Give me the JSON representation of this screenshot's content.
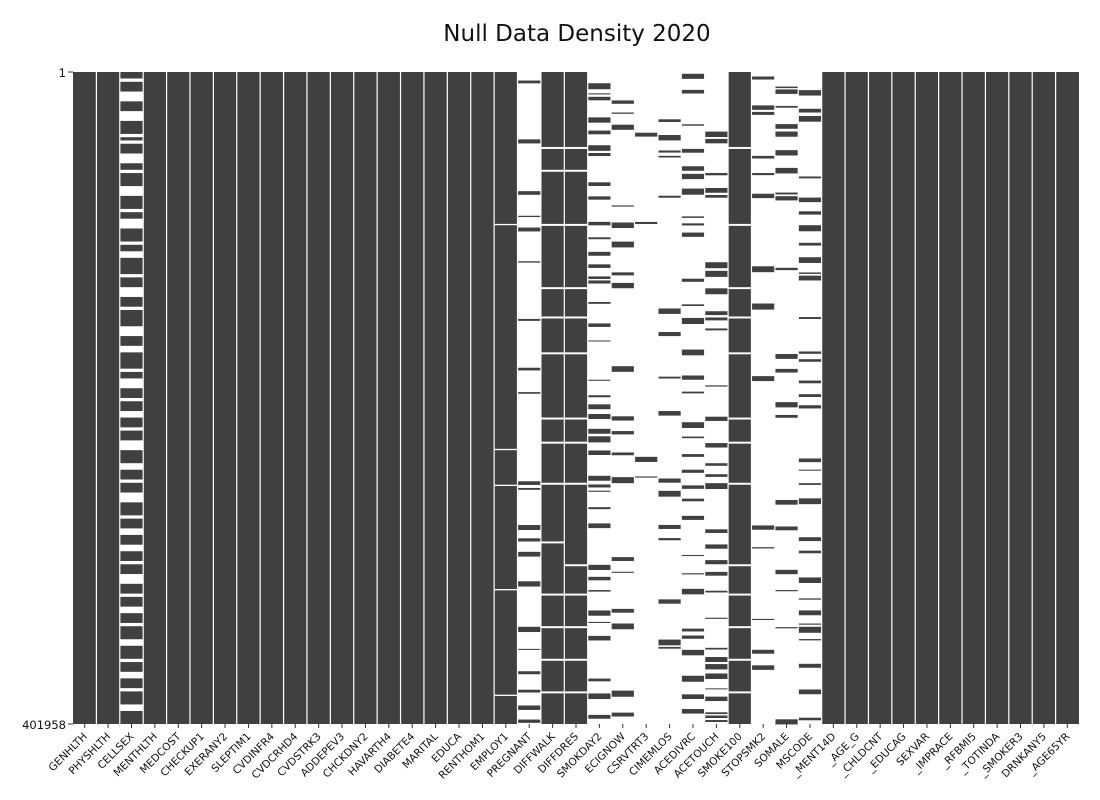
{
  "chart_data": {
    "type": "heatmap",
    "title": "Null Data Density 2020",
    "y_tick_labels": [
      "1",
      "401958"
    ],
    "y_range": [
      1,
      401958
    ],
    "colors": {
      "present": "#404040",
      "missing": "#ffffff",
      "divider": "#ffffff"
    },
    "grid": false,
    "legend": "none",
    "columns": [
      {
        "name": "GENHLTH",
        "missing_fraction": 0.0,
        "pattern": []
      },
      {
        "name": "PHYSHLTH",
        "missing_fraction": 0.0,
        "pattern": []
      },
      {
        "name": "CELLSEX",
        "missing_fraction": 0.45,
        "pattern": [
          [
            0.01,
            0.015
          ],
          [
            0.03,
            0.045
          ],
          [
            0.06,
            0.075
          ],
          [
            0.095,
            0.1
          ],
          [
            0.105,
            0.11
          ],
          [
            0.125,
            0.14
          ],
          [
            0.15,
            0.155
          ],
          [
            0.175,
            0.19
          ],
          [
            0.21,
            0.215
          ],
          [
            0.225,
            0.24
          ],
          [
            0.26,
            0.265
          ],
          [
            0.275,
            0.285
          ],
          [
            0.31,
            0.315
          ],
          [
            0.33,
            0.345
          ],
          [
            0.36,
            0.365
          ],
          [
            0.39,
            0.405
          ],
          [
            0.42,
            0.43
          ],
          [
            0.455,
            0.46
          ],
          [
            0.47,
            0.485
          ],
          [
            0.5,
            0.505
          ],
          [
            0.52,
            0.53
          ],
          [
            0.545,
            0.55
          ],
          [
            0.565,
            0.58
          ],
          [
            0.6,
            0.61
          ],
          [
            0.625,
            0.63
          ],
          [
            0.645,
            0.66
          ],
          [
            0.68,
            0.685
          ],
          [
            0.7,
            0.71
          ],
          [
            0.725,
            0.735
          ],
          [
            0.75,
            0.755
          ],
          [
            0.77,
            0.785
          ],
          [
            0.8,
            0.805
          ],
          [
            0.82,
            0.83
          ],
          [
            0.845,
            0.85
          ],
          [
            0.87,
            0.88
          ],
          [
            0.9,
            0.905
          ],
          [
            0.92,
            0.93
          ],
          [
            0.945,
            0.95
          ],
          [
            0.97,
            0.98
          ]
        ]
      },
      {
        "name": "MENTHLTH",
        "missing_fraction": 0.0,
        "pattern": []
      },
      {
        "name": "MEDCOST",
        "missing_fraction": 0.0,
        "pattern": []
      },
      {
        "name": "CHECKUP1",
        "missing_fraction": 0.0,
        "pattern": []
      },
      {
        "name": "EXERANY2",
        "missing_fraction": 0.0,
        "pattern": []
      },
      {
        "name": "SLEPTIM1",
        "missing_fraction": 0.0,
        "pattern": []
      },
      {
        "name": "CVDINFR4",
        "missing_fraction": 0.0,
        "pattern": []
      },
      {
        "name": "CVDCRHD4",
        "missing_fraction": 0.0,
        "pattern": []
      },
      {
        "name": "CVDSTRK3",
        "missing_fraction": 0.0,
        "pattern": []
      },
      {
        "name": "ADDEPEV3",
        "missing_fraction": 0.0,
        "pattern": []
      },
      {
        "name": "CHCKDNY2",
        "missing_fraction": 0.0,
        "pattern": []
      },
      {
        "name": "HAVARTH4",
        "missing_fraction": 0.0,
        "pattern": []
      },
      {
        "name": "DIABETE4",
        "missing_fraction": 0.0,
        "pattern": []
      },
      {
        "name": "MARITAL",
        "missing_fraction": 0.0,
        "pattern": []
      },
      {
        "name": "EDUCA",
        "missing_fraction": 0.0,
        "pattern": []
      },
      {
        "name": "RENTHOM1",
        "missing_fraction": 0.0,
        "pattern": []
      },
      {
        "name": "EMPLOY1",
        "missing_fraction": 0.01,
        "pattern": [
          [
            0.233,
            0.235
          ],
          [
            0.578,
            0.58
          ],
          [
            0.633,
            0.635
          ],
          [
            0.793,
            0.795
          ],
          [
            0.955,
            0.957
          ]
        ]
      },
      {
        "name": "PREGNANT",
        "missing_fraction": 0.85,
        "pattern": []
      },
      {
        "name": "DIFFWALK",
        "missing_fraction": 0.02,
        "pattern": [
          [
            0.115,
            0.118
          ],
          [
            0.15,
            0.153
          ],
          [
            0.233,
            0.236
          ],
          [
            0.33,
            0.333
          ],
          [
            0.375,
            0.378
          ],
          [
            0.43,
            0.433
          ],
          [
            0.53,
            0.533
          ],
          [
            0.567,
            0.57
          ],
          [
            0.63,
            0.633
          ],
          [
            0.72,
            0.723
          ],
          [
            0.8,
            0.803
          ],
          [
            0.85,
            0.853
          ],
          [
            0.9,
            0.903
          ],
          [
            0.95,
            0.953
          ]
        ]
      },
      {
        "name": "DIFFDRES",
        "missing_fraction": 0.02,
        "pattern": [
          [
            0.115,
            0.118
          ],
          [
            0.15,
            0.153
          ],
          [
            0.233,
            0.236
          ],
          [
            0.33,
            0.333
          ],
          [
            0.375,
            0.378
          ],
          [
            0.43,
            0.433
          ],
          [
            0.53,
            0.533
          ],
          [
            0.567,
            0.57
          ],
          [
            0.63,
            0.633
          ],
          [
            0.755,
            0.758
          ],
          [
            0.8,
            0.803
          ],
          [
            0.85,
            0.853
          ],
          [
            0.9,
            0.903
          ],
          [
            0.95,
            0.953
          ]
        ]
      },
      {
        "name": "SMOKDAY2",
        "missing_fraction": 0.6,
        "pattern": []
      },
      {
        "name": "ECIGNOW",
        "missing_fraction": 0.88,
        "pattern": []
      },
      {
        "name": "CSRVTRT3",
        "missing_fraction": 0.93,
        "pattern": []
      },
      {
        "name": "CIMEMLOS",
        "missing_fraction": 0.9,
        "pattern": []
      },
      {
        "name": "ACEDIVRC",
        "missing_fraction": 0.72,
        "pattern": []
      },
      {
        "name": "ACETOUCH",
        "missing_fraction": 0.72,
        "pattern": []
      },
      {
        "name": "SMOKE100",
        "missing_fraction": 0.02,
        "pattern": [
          [
            0.115,
            0.118
          ],
          [
            0.233,
            0.236
          ],
          [
            0.33,
            0.333
          ],
          [
            0.375,
            0.378
          ],
          [
            0.43,
            0.433
          ],
          [
            0.53,
            0.533
          ],
          [
            0.567,
            0.57
          ],
          [
            0.63,
            0.633
          ],
          [
            0.755,
            0.758
          ],
          [
            0.8,
            0.803
          ],
          [
            0.85,
            0.853
          ],
          [
            0.9,
            0.903
          ],
          [
            0.95,
            0.953
          ]
        ]
      },
      {
        "name": "STOPSMK2",
        "missing_fraction": 0.86,
        "pattern": []
      },
      {
        "name": "SOMALE",
        "missing_fraction": 0.82,
        "pattern": []
      },
      {
        "name": "MSCODE",
        "missing_fraction": 0.7,
        "pattern": []
      },
      {
        "name": "_MENT14D",
        "missing_fraction": 0.0,
        "pattern": []
      },
      {
        "name": "_AGE_G",
        "missing_fraction": 0.0,
        "pattern": []
      },
      {
        "name": "_CHLDCNT",
        "missing_fraction": 0.0,
        "pattern": []
      },
      {
        "name": "_EDUCAG",
        "missing_fraction": 0.0,
        "pattern": []
      },
      {
        "name": "SEXVAR",
        "missing_fraction": 0.0,
        "pattern": []
      },
      {
        "name": "_IMPRACE",
        "missing_fraction": 0.0,
        "pattern": []
      },
      {
        "name": "_RFBMI5",
        "missing_fraction": 0.0,
        "pattern": []
      },
      {
        "name": "_TOTINDA",
        "missing_fraction": 0.0,
        "pattern": []
      },
      {
        "name": "_SMOKER3",
        "missing_fraction": 0.0,
        "pattern": []
      },
      {
        "name": "DRNKANY5",
        "missing_fraction": 0.0,
        "pattern": []
      },
      {
        "name": "_AGE65YR",
        "missing_fraction": 0.0,
        "pattern": []
      }
    ]
  }
}
